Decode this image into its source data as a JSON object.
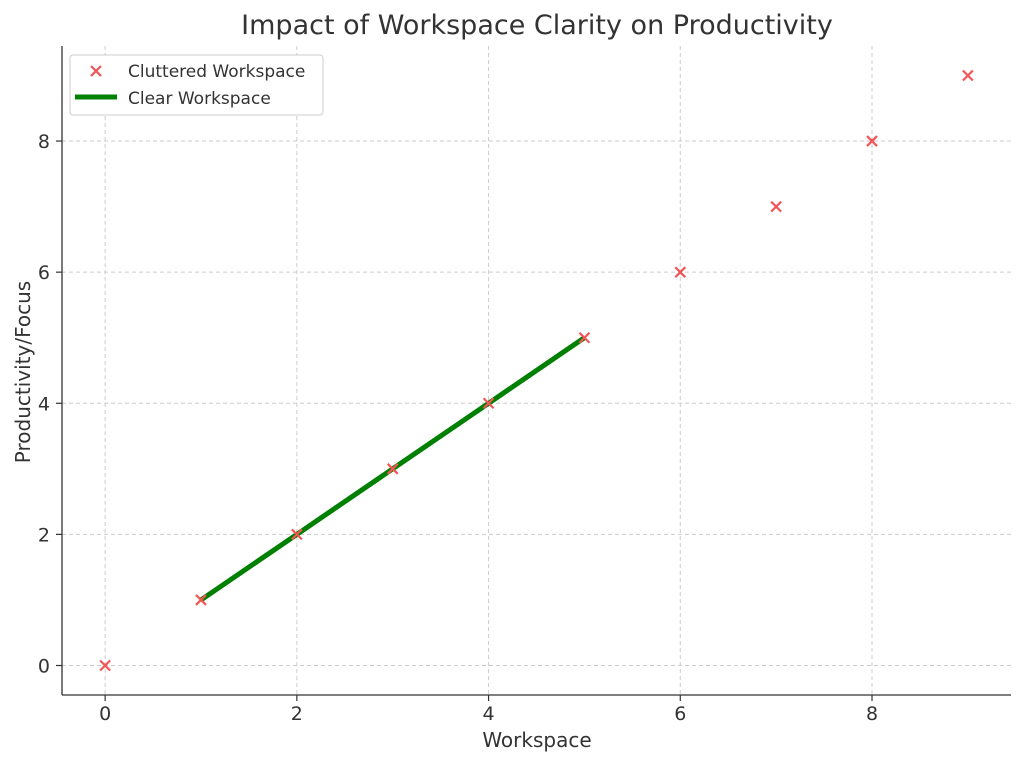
{
  "chart_data": {
    "type": "scatter",
    "title": "Impact of Workspace Clarity on Productivity",
    "xlabel": "Workspace",
    "ylabel": "Productivity/Focus",
    "xlim": [
      -0.45,
      9.45
    ],
    "ylim": [
      -0.45,
      9.45
    ],
    "xticks": [
      0,
      2,
      4,
      6,
      8
    ],
    "yticks": [
      0,
      2,
      4,
      6,
      8
    ],
    "grid": true,
    "legend_position": "top-left",
    "series": [
      {
        "name": "Cluttered Workspace",
        "kind": "scatter",
        "marker": "x",
        "color": "#f25555",
        "x": [
          0,
          1,
          2,
          3,
          4,
          5,
          6,
          7,
          8,
          9
        ],
        "y": [
          0,
          1,
          2,
          3,
          4,
          5,
          6,
          7,
          8,
          9
        ]
      },
      {
        "name": "Clear Workspace",
        "kind": "line",
        "color": "#008000",
        "x": [
          1,
          2,
          3,
          4,
          5
        ],
        "y": [
          1,
          2,
          3,
          4,
          5
        ]
      }
    ]
  }
}
